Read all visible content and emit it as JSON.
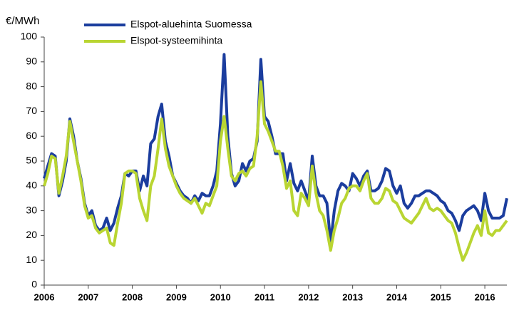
{
  "chart_data": {
    "type": "line",
    "y_label": "€/MWh",
    "x": [
      2006,
      2006.083,
      2006.167,
      2006.25,
      2006.333,
      2006.417,
      2006.5,
      2006.583,
      2006.667,
      2006.75,
      2006.833,
      2006.917,
      2007,
      2007.083,
      2007.167,
      2007.25,
      2007.333,
      2007.417,
      2007.5,
      2007.583,
      2007.667,
      2007.75,
      2007.833,
      2007.917,
      2008,
      2008.083,
      2008.167,
      2008.25,
      2008.333,
      2008.417,
      2008.5,
      2008.583,
      2008.667,
      2008.75,
      2008.833,
      2008.917,
      2009,
      2009.083,
      2009.167,
      2009.25,
      2009.333,
      2009.417,
      2009.5,
      2009.583,
      2009.667,
      2009.75,
      2009.833,
      2009.917,
      2010,
      2010.083,
      2010.167,
      2010.25,
      2010.333,
      2010.417,
      2010.5,
      2010.583,
      2010.667,
      2010.75,
      2010.833,
      2010.917,
      2011,
      2011.083,
      2011.167,
      2011.25,
      2011.333,
      2011.417,
      2011.5,
      2011.583,
      2011.667,
      2011.75,
      2011.833,
      2011.917,
      2012,
      2012.083,
      2012.167,
      2012.25,
      2012.333,
      2012.417,
      2012.5,
      2012.583,
      2012.667,
      2012.75,
      2012.833,
      2012.917,
      2013,
      2013.083,
      2013.167,
      2013.25,
      2013.333,
      2013.417,
      2013.5,
      2013.583,
      2013.667,
      2013.75,
      2013.833,
      2013.917,
      2014,
      2014.083,
      2014.167,
      2014.25,
      2014.333,
      2014.417,
      2014.5,
      2014.583,
      2014.667,
      2014.75,
      2014.833,
      2014.917,
      2015,
      2015.083,
      2015.167,
      2015.25,
      2015.333,
      2015.417,
      2015.5,
      2015.583,
      2015.667,
      2015.75,
      2015.833,
      2015.917,
      2016,
      2016.083,
      2016.167,
      2016.25,
      2016.333,
      2016.417,
      2016.5
    ],
    "series": [
      {
        "name": "Elspot-aluehinta Suomessa",
        "color": "#1b3d9e",
        "values": [
          43,
          48,
          53,
          52,
          36,
          42,
          50,
          67,
          60,
          50,
          43,
          33,
          28,
          30,
          24,
          22,
          23,
          27,
          22,
          25,
          31,
          36,
          45,
          44,
          46,
          46,
          38,
          44,
          40,
          57,
          59,
          68,
          73,
          58,
          52,
          44,
          41,
          38,
          36,
          35,
          33,
          36,
          34,
          37,
          36,
          36,
          40,
          46,
          65,
          93,
          60,
          45,
          40,
          42,
          49,
          46,
          50,
          51,
          58,
          91,
          68,
          66,
          60,
          53,
          53,
          53,
          42,
          49,
          41,
          38,
          42,
          38,
          34,
          52,
          40,
          36,
          36,
          33,
          17,
          30,
          38,
          41,
          40,
          38,
          45,
          43,
          40,
          44,
          46,
          38,
          38,
          39,
          42,
          47,
          46,
          40,
          37,
          40,
          33,
          31,
          33,
          36,
          36,
          37,
          38,
          38,
          37,
          36,
          34,
          33,
          30,
          29,
          26,
          22,
          28,
          30,
          31,
          32,
          30,
          26,
          37,
          30,
          27,
          27,
          27,
          28,
          35
        ]
      },
      {
        "name": "Elspot-systeemihinta",
        "color": "#b9d532",
        "values": [
          40,
          45,
          52,
          51,
          37,
          44,
          52,
          66,
          58,
          50,
          42,
          32,
          27,
          28,
          23,
          21,
          22,
          23,
          17,
          16,
          25,
          33,
          45,
          46,
          46,
          45,
          35,
          30,
          26,
          40,
          44,
          55,
          67,
          55,
          48,
          44,
          40,
          37,
          35,
          34,
          33,
          35,
          32,
          29,
          33,
          32,
          36,
          40,
          58,
          68,
          55,
          44,
          42,
          45,
          46,
          44,
          47,
          48,
          60,
          82,
          65,
          62,
          58,
          54,
          54,
          48,
          39,
          42,
          30,
          28,
          37,
          35,
          32,
          48,
          37,
          30,
          28,
          22,
          14,
          22,
          27,
          33,
          35,
          39,
          40,
          40,
          38,
          42,
          45,
          35,
          33,
          33,
          35,
          39,
          38,
          34,
          33,
          30,
          27,
          26,
          25,
          27,
          29,
          32,
          35,
          31,
          30,
          31,
          30,
          28,
          26,
          25,
          21,
          15,
          10,
          13,
          17,
          21,
          24,
          20,
          30,
          21,
          20,
          22,
          22,
          24,
          26
        ]
      }
    ],
    "xlim": [
      2006,
      2016.5
    ],
    "xticks": [
      2006,
      2007,
      2008,
      2009,
      2010,
      2011,
      2012,
      2013,
      2014,
      2015,
      2016
    ],
    "ylim": [
      0,
      100
    ],
    "yticks": [
      0,
      10,
      20,
      30,
      40,
      50,
      60,
      70,
      80,
      90,
      100
    ],
    "grid": false,
    "legend": "top"
  }
}
